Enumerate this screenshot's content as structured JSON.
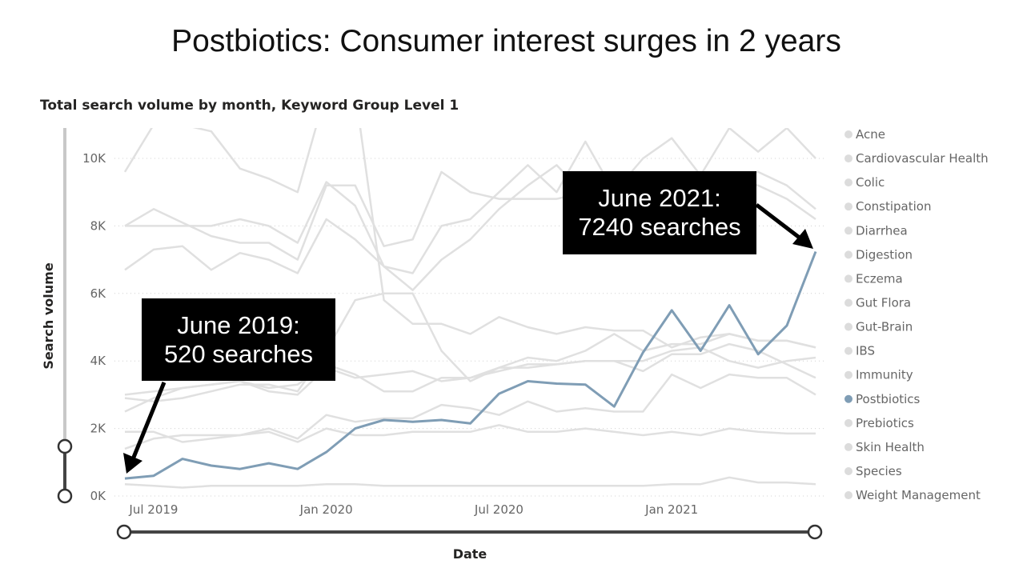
{
  "page_title": "Postbiotics: Consumer interest surges in 2 years",
  "chart_data": {
    "type": "line",
    "title": "Total search volume by month, Keyword Group Level 1",
    "xlabel": "Date",
    "ylabel": "Search volume",
    "x": [
      "2019-06",
      "2019-07",
      "2019-08",
      "2019-09",
      "2019-10",
      "2019-11",
      "2019-12",
      "2020-01",
      "2020-02",
      "2020-03",
      "2020-04",
      "2020-05",
      "2020-06",
      "2020-07",
      "2020-08",
      "2020-09",
      "2020-10",
      "2020-11",
      "2020-12",
      "2021-01",
      "2021-02",
      "2021-03",
      "2021-04",
      "2021-05",
      "2021-06"
    ],
    "x_ticks": [
      "Jul 2019",
      "Jan 2020",
      "Jul 2020",
      "Jan 2021"
    ],
    "y_ticks": [
      "0K",
      "2K",
      "4K",
      "6K",
      "8K",
      "10K"
    ],
    "ylim": [
      0,
      10800
    ],
    "grid": "horizontal dotted",
    "legend_position": "right",
    "legend": [
      "Acne",
      "Cardiovascular Health",
      "Colic",
      "Constipation",
      "Diarrhea",
      "Digestion",
      "Eczema",
      "Gut Flora",
      "Gut-Brain",
      "IBS",
      "Immunity",
      "Postbiotics",
      "Prebiotics",
      "Skin Health",
      "Species",
      "Weight Management"
    ],
    "highlight_color": "#7f9db5",
    "muted_color": "#e0e0e0",
    "series": [
      {
        "name": "Postbiotics",
        "highlight": true,
        "values": [
          520,
          600,
          1100,
          900,
          800,
          970,
          800,
          1300,
          2000,
          2250,
          2200,
          2250,
          2150,
          3030,
          3400,
          3330,
          3300,
          2650,
          4250,
          5500,
          4300,
          5650,
          4200,
          5050,
          7240
        ]
      },
      {
        "values": [
          350,
          300,
          250,
          300,
          300,
          300,
          300,
          350,
          350,
          300,
          300,
          300,
          300,
          300,
          300,
          300,
          300,
          300,
          300,
          350,
          350,
          550,
          400,
          400,
          350
        ]
      },
      {
        "values": [
          1900,
          1900,
          1600,
          1700,
          1800,
          1900,
          1600,
          2000,
          1800,
          1800,
          1900,
          1900,
          1900,
          2100,
          1900,
          1900,
          2000,
          1900,
          1800,
          1900,
          1800,
          2000,
          1900,
          1850,
          1850
        ]
      },
      {
        "values": [
          1400,
          1700,
          1800,
          1800,
          1800,
          2000,
          1700,
          2400,
          2200,
          2300,
          2300,
          2700,
          2600,
          2400,
          2800,
          2500,
          2600,
          2500,
          2500,
          3600,
          3200,
          3600,
          3500,
          3500,
          3000
        ]
      },
      {
        "values": [
          2500,
          2900,
          3200,
          3300,
          3400,
          3100,
          3000,
          3800,
          3500,
          3600,
          3700,
          3400,
          3500,
          3700,
          3900,
          3900,
          4000,
          4000,
          3700,
          4200,
          4200,
          4500,
          4300,
          3900,
          3500
        ]
      },
      {
        "values": [
          3000,
          3100,
          3200,
          3300,
          3400,
          3200,
          3300,
          3900,
          3600,
          3100,
          3100,
          3500,
          3500,
          3800,
          3800,
          3900,
          4000,
          4000,
          4000,
          4300,
          4400,
          4000,
          3800,
          4000,
          4100
        ]
      },
      {
        "values": [
          2900,
          2800,
          2900,
          3100,
          3300,
          3300,
          3100,
          4300,
          5800,
          6000,
          6000,
          4300,
          3400,
          3800,
          4100,
          4000,
          4300,
          4800,
          4300,
          4500,
          4500,
          4800,
          4600,
          4600,
          4400
        ]
      },
      {
        "values": [
          6700,
          7300,
          7400,
          6700,
          7200,
          7000,
          6600,
          8200,
          7600,
          6800,
          6100,
          7000,
          7600,
          8500,
          9200,
          9800,
          8900,
          8600,
          9300,
          9400,
          9400,
          9400,
          9200,
          8800,
          8200
        ]
      },
      {
        "values": [
          8000,
          8500,
          8100,
          7700,
          7500,
          7500,
          7000,
          9200,
          9200,
          7400,
          7600,
          9600,
          9000,
          8800,
          8800,
          8800,
          9000,
          9000,
          10000,
          10600,
          9500,
          10900,
          10200,
          10900,
          10000
        ]
      },
      {
        "values": [
          8000,
          8000,
          8000,
          8000,
          8200,
          8000,
          7500,
          9300,
          8600,
          6800,
          6600,
          8000,
          8200,
          9000,
          9800,
          9000,
          10500,
          9000,
          8500,
          9200,
          9200,
          9500,
          9600,
          9200,
          8500
        ]
      },
      {
        "values": [
          9600,
          11000,
          11000,
          10800,
          9700,
          9400,
          9000,
          12000,
          12000,
          5800,
          5100,
          5100,
          4800,
          5300,
          5000,
          4800,
          5000,
          4900,
          4900,
          4400,
          4700,
          4800,
          4600,
          4600,
          4400
        ]
      }
    ],
    "annotations": [
      {
        "line1": "June 2019:",
        "line2": "520 searches"
      },
      {
        "line1": "June 2021:",
        "line2": "7240 searches"
      }
    ]
  }
}
